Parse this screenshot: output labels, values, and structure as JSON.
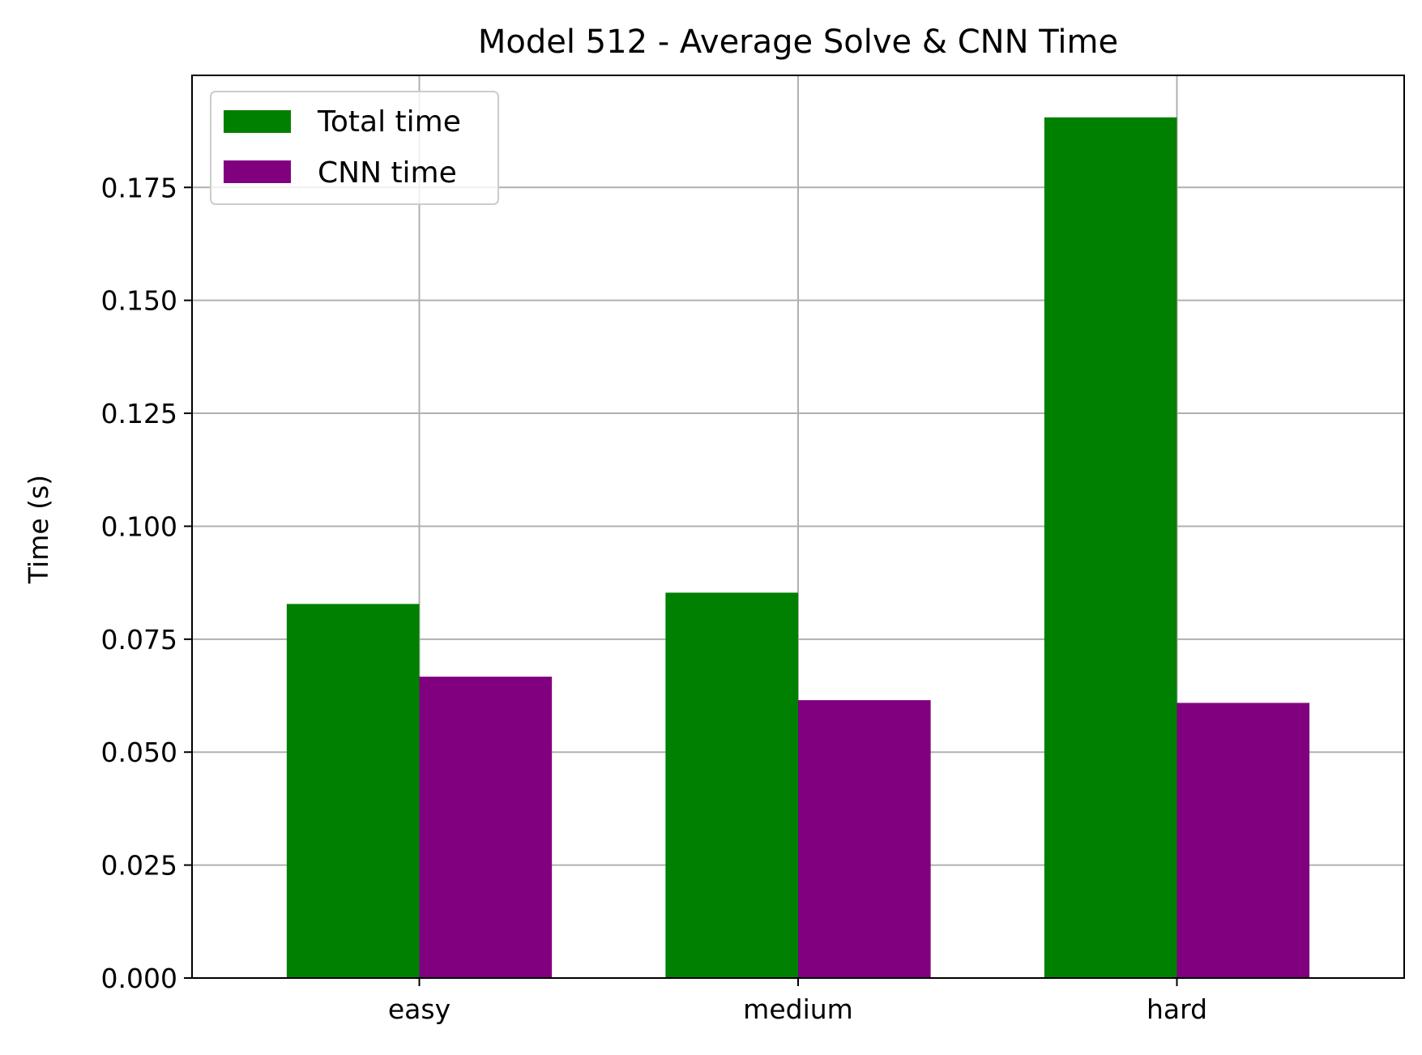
{
  "chart_data": {
    "type": "bar",
    "title": "Model 512 - Average Solve & CNN Time",
    "xlabel": "",
    "ylabel": "Time (s)",
    "categories": [
      "easy",
      "medium",
      "hard"
    ],
    "series": [
      {
        "name": "Total time",
        "values": [
          0.0828,
          0.0853,
          0.1905
        ],
        "color": "#008000"
      },
      {
        "name": "CNN time",
        "values": [
          0.0667,
          0.0615,
          0.0609
        ],
        "color": "#800080"
      }
    ],
    "ylim": [
      0,
      0.1998
    ],
    "yticks": [
      0.0,
      0.025,
      0.05,
      0.075,
      0.1,
      0.125,
      0.15,
      0.175
    ],
    "ytick_labels": [
      "0.000",
      "0.025",
      "0.050",
      "0.075",
      "0.100",
      "0.125",
      "0.150",
      "0.175"
    ],
    "grid": true,
    "legend_position": "top-left"
  }
}
